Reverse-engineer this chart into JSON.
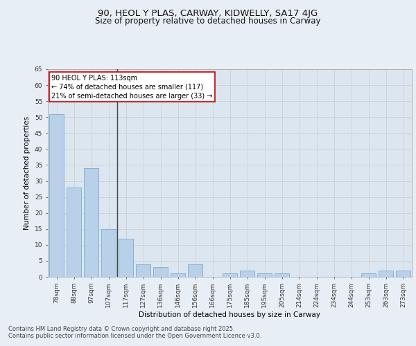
{
  "title": "90, HEOL Y PLAS, CARWAY, KIDWELLY, SA17 4JG",
  "subtitle": "Size of property relative to detached houses in Carway",
  "xlabel": "Distribution of detached houses by size in Carway",
  "ylabel": "Number of detached properties",
  "categories": [
    "78sqm",
    "88sqm",
    "97sqm",
    "107sqm",
    "117sqm",
    "127sqm",
    "136sqm",
    "146sqm",
    "156sqm",
    "166sqm",
    "175sqm",
    "185sqm",
    "195sqm",
    "205sqm",
    "214sqm",
    "224sqm",
    "234sqm",
    "244sqm",
    "253sqm",
    "263sqm",
    "273sqm"
  ],
  "values": [
    51,
    28,
    34,
    15,
    12,
    4,
    3,
    1,
    4,
    0,
    1,
    2,
    1,
    1,
    0,
    0,
    0,
    0,
    1,
    2,
    2
  ],
  "bar_color": "#b8d0e8",
  "bar_edge_color": "#7aaed0",
  "highlight_line_index": 4,
  "highlight_line_color": "#444444",
  "annotation_text": "90 HEOL Y PLAS: 113sqm\n← 74% of detached houses are smaller (117)\n21% of semi-detached houses are larger (33) →",
  "annotation_box_color": "#ffffff",
  "annotation_box_edge_color": "#cc0000",
  "ylim": [
    0,
    65
  ],
  "yticks": [
    0,
    5,
    10,
    15,
    20,
    25,
    30,
    35,
    40,
    45,
    50,
    55,
    60,
    65
  ],
  "grid_color": "#cccccc",
  "plot_bg_color": "#dce6f0",
  "fig_bg_color": "#e8eef5",
  "footer_text": "Contains HM Land Registry data © Crown copyright and database right 2025.\nContains public sector information licensed under the Open Government Licence v3.0.",
  "title_fontsize": 9.5,
  "subtitle_fontsize": 8.5,
  "axis_label_fontsize": 7.5,
  "tick_fontsize": 6.5,
  "annotation_fontsize": 7,
  "footer_fontsize": 6
}
